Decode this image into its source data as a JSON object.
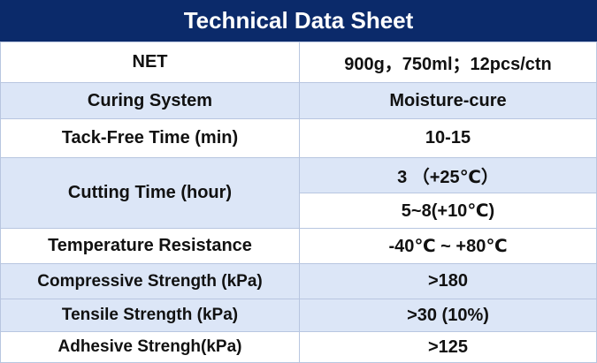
{
  "header": {
    "title": "Technical Data Sheet"
  },
  "table": {
    "rows": [
      {
        "label": "NET",
        "value": "900g，750ml；12pcs/ctn"
      },
      {
        "label": "Curing System",
        "value": "Moisture-cure"
      },
      {
        "label": "Tack-Free Time (min)",
        "value": "10-15"
      },
      {
        "label": "Cutting Time (hour)",
        "values": [
          "3 （+25℃）",
          "5~8(+10℃)"
        ]
      },
      {
        "label": "Temperature Resistance",
        "value": "-40℃ ~ +80℃"
      },
      {
        "label": "Compressive Strength (kPa)",
        "value": ">180"
      },
      {
        "label": "Tensile Strength (kPa)",
        "value": ">30 (10%)"
      },
      {
        "label": "Adhesive Strengh(kPa)",
        "value": ">125"
      }
    ]
  }
}
